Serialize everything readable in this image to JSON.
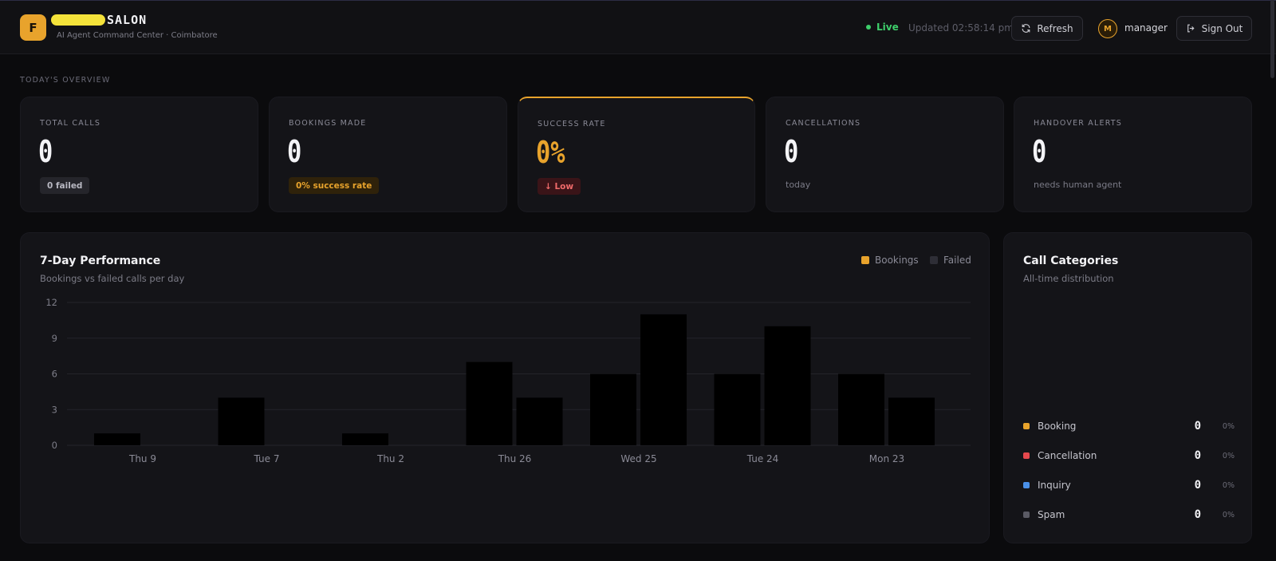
{
  "header": {
    "logo_letter": "F",
    "brand_name": "SALON",
    "brand_subtitle": "AI Agent Command Center · Coimbatore",
    "live_label": "Live",
    "updated_text": "Updated 02:58:14 pm",
    "refresh_label": "Refresh",
    "user_initial": "M",
    "user_name": "manager",
    "signout_label": "Sign Out"
  },
  "overview": {
    "section_label": "TODAY'S OVERVIEW",
    "cards": [
      {
        "label": "TOTAL CALLS",
        "value": "0",
        "chip": "0 failed"
      },
      {
        "label": "BOOKINGS MADE",
        "value": "0",
        "chip": "0% success rate"
      },
      {
        "label": "SUCCESS RATE",
        "value": "0%",
        "chip": "↓ Low"
      },
      {
        "label": "CANCELLATIONS",
        "value": "0",
        "note": "today"
      },
      {
        "label": "HANDOVER ALERTS",
        "value": "0",
        "note": "needs human agent"
      }
    ]
  },
  "performance": {
    "title": "7-Day Performance",
    "subtitle": "Bookings vs failed calls per day",
    "legend": [
      "Bookings",
      "Failed"
    ]
  },
  "chart_data": {
    "type": "bar",
    "categories": [
      "Thu 9",
      "Tue 7",
      "Thu 2",
      "Thu 26",
      "Wed 25",
      "Tue 24",
      "Mon 23"
    ],
    "series": [
      {
        "name": "Bookings",
        "values": [
          1,
          4,
          1,
          7,
          6,
          6,
          6
        ]
      },
      {
        "name": "Failed",
        "values": [
          0,
          0,
          0,
          4,
          11,
          10,
          4
        ]
      }
    ],
    "yticks": [
      0,
      3,
      6,
      9,
      12
    ],
    "ylim": [
      0,
      12
    ],
    "grid": true,
    "legend_position": "top-right"
  },
  "categories_panel": {
    "title": "Call Categories",
    "subtitle": "All-time distribution",
    "items": [
      {
        "name": "Booking",
        "count": "0",
        "pct": "0%",
        "color": "#e8a32c"
      },
      {
        "name": "Cancellation",
        "count": "0",
        "pct": "0%",
        "color": "#e5484d"
      },
      {
        "name": "Inquiry",
        "count": "0",
        "pct": "0%",
        "color": "#4a90e8"
      },
      {
        "name": "Spam",
        "count": "0",
        "pct": "0%",
        "color": "#5a5a64"
      }
    ]
  },
  "colors": {
    "accent": "#e8a32c",
    "live": "#3ecf6b",
    "danger": "#f06a6a",
    "bar_fill": "#000000",
    "legend_bookings": "#e8a32c",
    "legend_failed": "#2e2e36"
  }
}
